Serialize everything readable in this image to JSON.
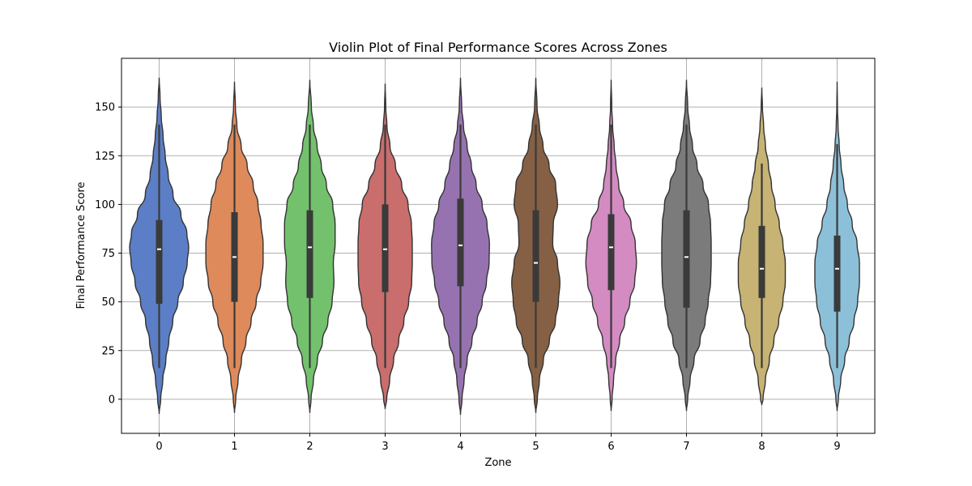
{
  "chart_data": {
    "type": "violin",
    "title": "Violin Plot of Final Performance Scores Across Zones",
    "xlabel": "Zone",
    "ylabel": "Final Performance Score",
    "categories": [
      "0",
      "1",
      "2",
      "3",
      "4",
      "5",
      "6",
      "7",
      "8",
      "9"
    ],
    "yticks": [
      0,
      25,
      50,
      75,
      100,
      125,
      150
    ],
    "ylim": [
      -17.5,
      175
    ],
    "grid": true,
    "outline_color": "#333333",
    "box_color": "#3a3a3a",
    "median_color": "#ffffff",
    "grid_color": "#b0b0b0",
    "violins": [
      {
        "category": "0",
        "color": "#5b7ec6",
        "profile": [
          [
            -7.5,
            0
          ],
          [
            0,
            0.05
          ],
          [
            10,
            0.12
          ],
          [
            20,
            0.22
          ],
          [
            30,
            0.32
          ],
          [
            40,
            0.45
          ],
          [
            50,
            0.62
          ],
          [
            60,
            0.8
          ],
          [
            70,
            0.93
          ],
          [
            78,
            0.98
          ],
          [
            85,
            0.92
          ],
          [
            95,
            0.72
          ],
          [
            105,
            0.46
          ],
          [
            115,
            0.3
          ],
          [
            125,
            0.2
          ],
          [
            135,
            0.13
          ],
          [
            145,
            0.07
          ],
          [
            155,
            0.03
          ],
          [
            165,
            0
          ]
        ],
        "whisker": [
          16,
          141
        ],
        "q1": 49,
        "median": 77,
        "q3": 92
      },
      {
        "category": "1",
        "color": "#de8a5a",
        "profile": [
          [
            -7,
            0
          ],
          [
            0,
            0.04
          ],
          [
            10,
            0.12
          ],
          [
            20,
            0.23
          ],
          [
            30,
            0.38
          ],
          [
            40,
            0.55
          ],
          [
            50,
            0.72
          ],
          [
            60,
            0.87
          ],
          [
            70,
            0.95
          ],
          [
            80,
            0.95
          ],
          [
            90,
            0.88
          ],
          [
            100,
            0.78
          ],
          [
            110,
            0.62
          ],
          [
            120,
            0.42
          ],
          [
            130,
            0.22
          ],
          [
            140,
            0.08
          ],
          [
            150,
            0.03
          ],
          [
            163,
            0
          ]
        ],
        "whisker": [
          16,
          141
        ],
        "q1": 50,
        "median": 73,
        "q3": 96
      },
      {
        "category": "2",
        "color": "#73c16c",
        "profile": [
          [
            -7,
            0
          ],
          [
            0,
            0.04
          ],
          [
            10,
            0.12
          ],
          [
            20,
            0.25
          ],
          [
            30,
            0.42
          ],
          [
            40,
            0.6
          ],
          [
            50,
            0.74
          ],
          [
            60,
            0.8
          ],
          [
            70,
            0.78
          ],
          [
            80,
            0.84
          ],
          [
            90,
            0.84
          ],
          [
            100,
            0.76
          ],
          [
            110,
            0.55
          ],
          [
            120,
            0.38
          ],
          [
            130,
            0.24
          ],
          [
            140,
            0.12
          ],
          [
            150,
            0.05
          ],
          [
            164,
            0
          ]
        ],
        "whisker": [
          16,
          141
        ],
        "q1": 52,
        "median": 78,
        "q3": 97
      },
      {
        "category": "3",
        "color": "#c96d6d",
        "profile": [
          [
            -5,
            0
          ],
          [
            0,
            0.05
          ],
          [
            10,
            0.15
          ],
          [
            20,
            0.28
          ],
          [
            30,
            0.45
          ],
          [
            40,
            0.62
          ],
          [
            50,
            0.78
          ],
          [
            60,
            0.88
          ],
          [
            70,
            0.9
          ],
          [
            80,
            0.9
          ],
          [
            90,
            0.87
          ],
          [
            100,
            0.76
          ],
          [
            110,
            0.55
          ],
          [
            120,
            0.34
          ],
          [
            130,
            0.16
          ],
          [
            140,
            0.06
          ],
          [
            150,
            0.02
          ],
          [
            162,
            0
          ]
        ],
        "whisker": [
          16,
          141
        ],
        "q1": 55,
        "median": 77,
        "q3": 100
      },
      {
        "category": "4",
        "color": "#9673b0",
        "profile": [
          [
            -8,
            0
          ],
          [
            0,
            0.05
          ],
          [
            10,
            0.12
          ],
          [
            20,
            0.22
          ],
          [
            30,
            0.38
          ],
          [
            40,
            0.55
          ],
          [
            50,
            0.72
          ],
          [
            60,
            0.86
          ],
          [
            70,
            0.95
          ],
          [
            80,
            0.96
          ],
          [
            90,
            0.88
          ],
          [
            100,
            0.72
          ],
          [
            110,
            0.52
          ],
          [
            120,
            0.36
          ],
          [
            130,
            0.22
          ],
          [
            140,
            0.1
          ],
          [
            150,
            0.04
          ],
          [
            165,
            0
          ]
        ],
        "whisker": [
          16,
          141
        ],
        "q1": 58,
        "median": 79,
        "q3": 103
      },
      {
        "category": "5",
        "color": "#866044",
        "profile": [
          [
            -7,
            0
          ],
          [
            0,
            0.05
          ],
          [
            10,
            0.12
          ],
          [
            20,
            0.25
          ],
          [
            30,
            0.45
          ],
          [
            40,
            0.65
          ],
          [
            50,
            0.75
          ],
          [
            60,
            0.8
          ],
          [
            70,
            0.72
          ],
          [
            80,
            0.56
          ],
          [
            90,
            0.58
          ],
          [
            100,
            0.72
          ],
          [
            110,
            0.66
          ],
          [
            120,
            0.44
          ],
          [
            130,
            0.24
          ],
          [
            140,
            0.12
          ],
          [
            150,
            0.04
          ],
          [
            165,
            0
          ]
        ],
        "whisker": [
          16,
          141
        ],
        "q1": 50,
        "median": 70,
        "q3": 97
      },
      {
        "category": "6",
        "color": "#d38bc2",
        "profile": [
          [
            -6,
            0
          ],
          [
            0,
            0.03
          ],
          [
            10,
            0.08
          ],
          [
            20,
            0.15
          ],
          [
            30,
            0.28
          ],
          [
            40,
            0.45
          ],
          [
            50,
            0.62
          ],
          [
            60,
            0.78
          ],
          [
            70,
            0.84
          ],
          [
            80,
            0.8
          ],
          [
            90,
            0.66
          ],
          [
            100,
            0.42
          ],
          [
            110,
            0.25
          ],
          [
            120,
            0.16
          ],
          [
            130,
            0.1
          ],
          [
            140,
            0.05
          ],
          [
            150,
            0.02
          ],
          [
            164,
            0
          ]
        ],
        "whisker": [
          16,
          141
        ],
        "q1": 56,
        "median": 78,
        "q3": 95
      },
      {
        "category": "7",
        "color": "#7b7b7b",
        "profile": [
          [
            -6,
            0
          ],
          [
            0,
            0.04
          ],
          [
            10,
            0.12
          ],
          [
            20,
            0.25
          ],
          [
            30,
            0.45
          ],
          [
            40,
            0.62
          ],
          [
            50,
            0.72
          ],
          [
            60,
            0.8
          ],
          [
            70,
            0.82
          ],
          [
            80,
            0.82
          ],
          [
            90,
            0.8
          ],
          [
            100,
            0.73
          ],
          [
            110,
            0.55
          ],
          [
            120,
            0.35
          ],
          [
            130,
            0.2
          ],
          [
            140,
            0.1
          ],
          [
            150,
            0.04
          ],
          [
            164,
            0
          ]
        ],
        "whisker": [
          16,
          141
        ],
        "q1": 47,
        "median": 73,
        "q3": 97
      },
      {
        "category": "8",
        "color": "#c7b373",
        "profile": [
          [
            -3,
            0
          ],
          [
            0,
            0.04
          ],
          [
            10,
            0.12
          ],
          [
            20,
            0.25
          ],
          [
            30,
            0.4
          ],
          [
            40,
            0.56
          ],
          [
            50,
            0.7
          ],
          [
            60,
            0.78
          ],
          [
            70,
            0.78
          ],
          [
            80,
            0.7
          ],
          [
            90,
            0.58
          ],
          [
            100,
            0.44
          ],
          [
            110,
            0.32
          ],
          [
            120,
            0.22
          ],
          [
            130,
            0.12
          ],
          [
            140,
            0.06
          ],
          [
            150,
            0.02
          ],
          [
            160,
            0
          ]
        ],
        "whisker": [
          16,
          121
        ],
        "q1": 52,
        "median": 67,
        "q3": 89
      },
      {
        "category": "9",
        "color": "#8cc0d8",
        "profile": [
          [
            -6,
            0
          ],
          [
            0,
            0.04
          ],
          [
            10,
            0.12
          ],
          [
            20,
            0.25
          ],
          [
            30,
            0.4
          ],
          [
            40,
            0.56
          ],
          [
            50,
            0.68
          ],
          [
            60,
            0.74
          ],
          [
            70,
            0.74
          ],
          [
            80,
            0.66
          ],
          [
            90,
            0.5
          ],
          [
            100,
            0.34
          ],
          [
            110,
            0.22
          ],
          [
            120,
            0.13
          ],
          [
            130,
            0.07
          ],
          [
            140,
            0.03
          ],
          [
            150,
            0.01
          ],
          [
            163,
            0
          ]
        ],
        "whisker": [
          16,
          131
        ],
        "q1": 45,
        "median": 67,
        "q3": 84
      }
    ]
  }
}
